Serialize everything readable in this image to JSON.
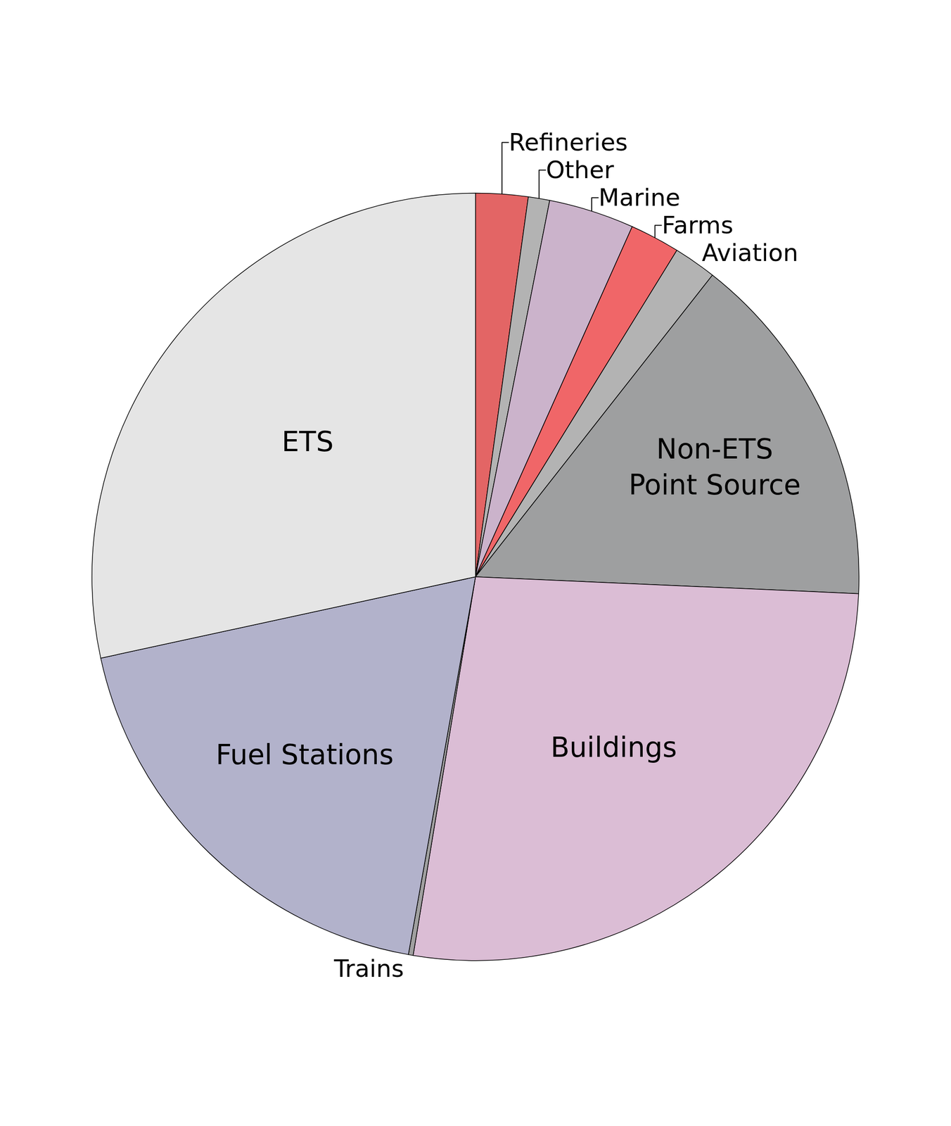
{
  "chart_data": {
    "type": "pie",
    "categories": [
      "Refineries",
      "Other",
      "Marine",
      "Farms",
      "Aviation",
      "Non-ETS Point Source",
      "Buildings",
      "Trains",
      "Fuel Stations",
      "ETS"
    ],
    "values": [
      2.2,
      0.9,
      3.6,
      2.1,
      1.8,
      15.1,
      26.9,
      0.2,
      18.8,
      28.4
    ],
    "colors": [
      "#e36565",
      "#b3b3b3",
      "#cbb3cb",
      "#f06668",
      "#b3b3b3",
      "#9e9fa0",
      "#dbbdd5",
      "#a0a0a0",
      "#b2b2cb",
      "#e5e5e5"
    ]
  }
}
